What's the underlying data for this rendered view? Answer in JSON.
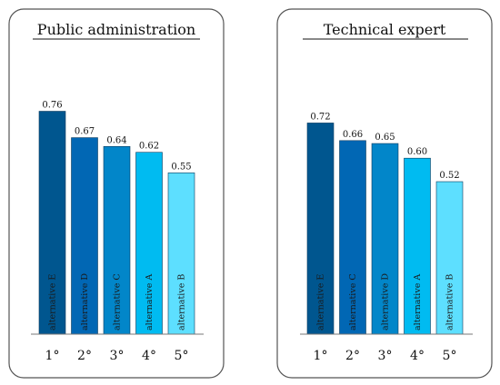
{
  "colors": {
    "rank1": "#00568f",
    "rank2": "#0167b4",
    "rank3": "#0286c9",
    "rank4": "#00bbf1",
    "rank5": "#5ddfff",
    "panel_border": "#555555",
    "text": "#111111"
  },
  "chart_data": [
    {
      "type": "bar",
      "title": "Public administration",
      "categories": [
        "1°",
        "2°",
        "3°",
        "4°",
        "5°"
      ],
      "bar_labels": [
        "alternative E",
        "alternative D",
        "alternative C",
        "alternative A",
        "alternative B"
      ],
      "values": [
        0.76,
        0.67,
        0.64,
        0.62,
        0.55
      ],
      "value_labels": [
        "0.76",
        "0.67",
        "0.64",
        "0.62",
        "0.55"
      ],
      "ylim": [
        0,
        0.8
      ],
      "grid": false
    },
    {
      "type": "bar",
      "title": "Technical expert",
      "categories": [
        "1°",
        "2°",
        "3°",
        "4°",
        "5°"
      ],
      "bar_labels": [
        "alternative E",
        "alternative C",
        "alternative D",
        "alternative A",
        "alternative B"
      ],
      "values": [
        0.72,
        0.66,
        0.65,
        0.6,
        0.52
      ],
      "value_labels": [
        "0.72",
        "0.66",
        "0.65",
        "0.60",
        "0.52"
      ],
      "ylim": [
        0,
        0.8
      ],
      "grid": false
    }
  ]
}
